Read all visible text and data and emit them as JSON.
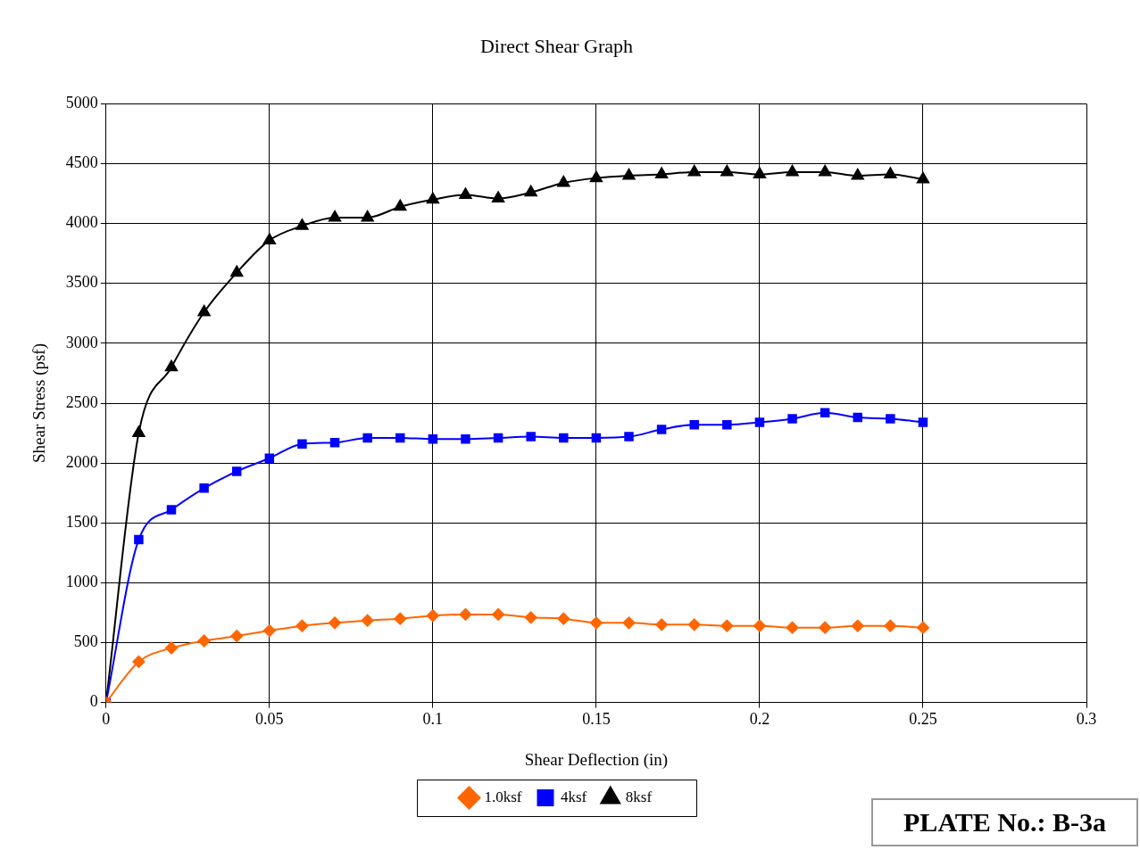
{
  "chart_data": {
    "type": "line",
    "title": "Direct Shear Graph",
    "xlabel": "Shear Deflection (in)",
    "ylabel": "Shear Stress (psf)",
    "x": [
      0,
      0.01,
      0.02,
      0.03,
      0.04,
      0.05,
      0.06,
      0.07,
      0.08,
      0.09,
      0.1,
      0.11,
      0.12,
      0.13,
      0.14,
      0.15,
      0.16,
      0.17,
      0.18,
      0.19,
      0.2,
      0.21,
      0.22,
      0.23,
      0.24,
      0.25
    ],
    "series": [
      {
        "name": "1.0ksf",
        "color": "#ff6600",
        "marker": "diamond",
        "values": [
          0,
          340,
          455,
          515,
          555,
          600,
          640,
          665,
          685,
          700,
          725,
          735,
          735,
          710,
          700,
          665,
          665,
          650,
          650,
          640,
          640,
          625,
          625,
          640,
          640,
          625
        ]
      },
      {
        "name": "4ksf",
        "color": "#0000ff",
        "marker": "square",
        "values": [
          0,
          1360,
          1610,
          1790,
          1930,
          2040,
          2160,
          2170,
          2210,
          2210,
          2200,
          2200,
          2210,
          2220,
          2210,
          2210,
          2220,
          2280,
          2320,
          2320,
          2340,
          2370,
          2420,
          2380,
          2370,
          2340
        ]
      },
      {
        "name": "8ksf",
        "color": "#000000",
        "marker": "triangle",
        "values": [
          0,
          2250,
          2800,
          3260,
          3590,
          3860,
          3980,
          4050,
          4050,
          4140,
          4200,
          4240,
          4210,
          4260,
          4340,
          4380,
          4400,
          4410,
          4430,
          4430,
          4410,
          4430,
          4430,
          4400,
          4410,
          4370
        ]
      }
    ],
    "xlim": [
      0,
      0.3
    ],
    "xticks": [
      0,
      0.05,
      0.1,
      0.15,
      0.2,
      0.25,
      0.3
    ],
    "ylim": [
      0,
      5000
    ],
    "yticks": [
      0,
      500,
      1000,
      1500,
      2000,
      2500,
      3000,
      3500,
      4000,
      4500,
      5000
    ],
    "grid": true,
    "legend": "bottom",
    "line_style": "solid",
    "annotations": [
      "PLATE No.: B-3a"
    ]
  }
}
